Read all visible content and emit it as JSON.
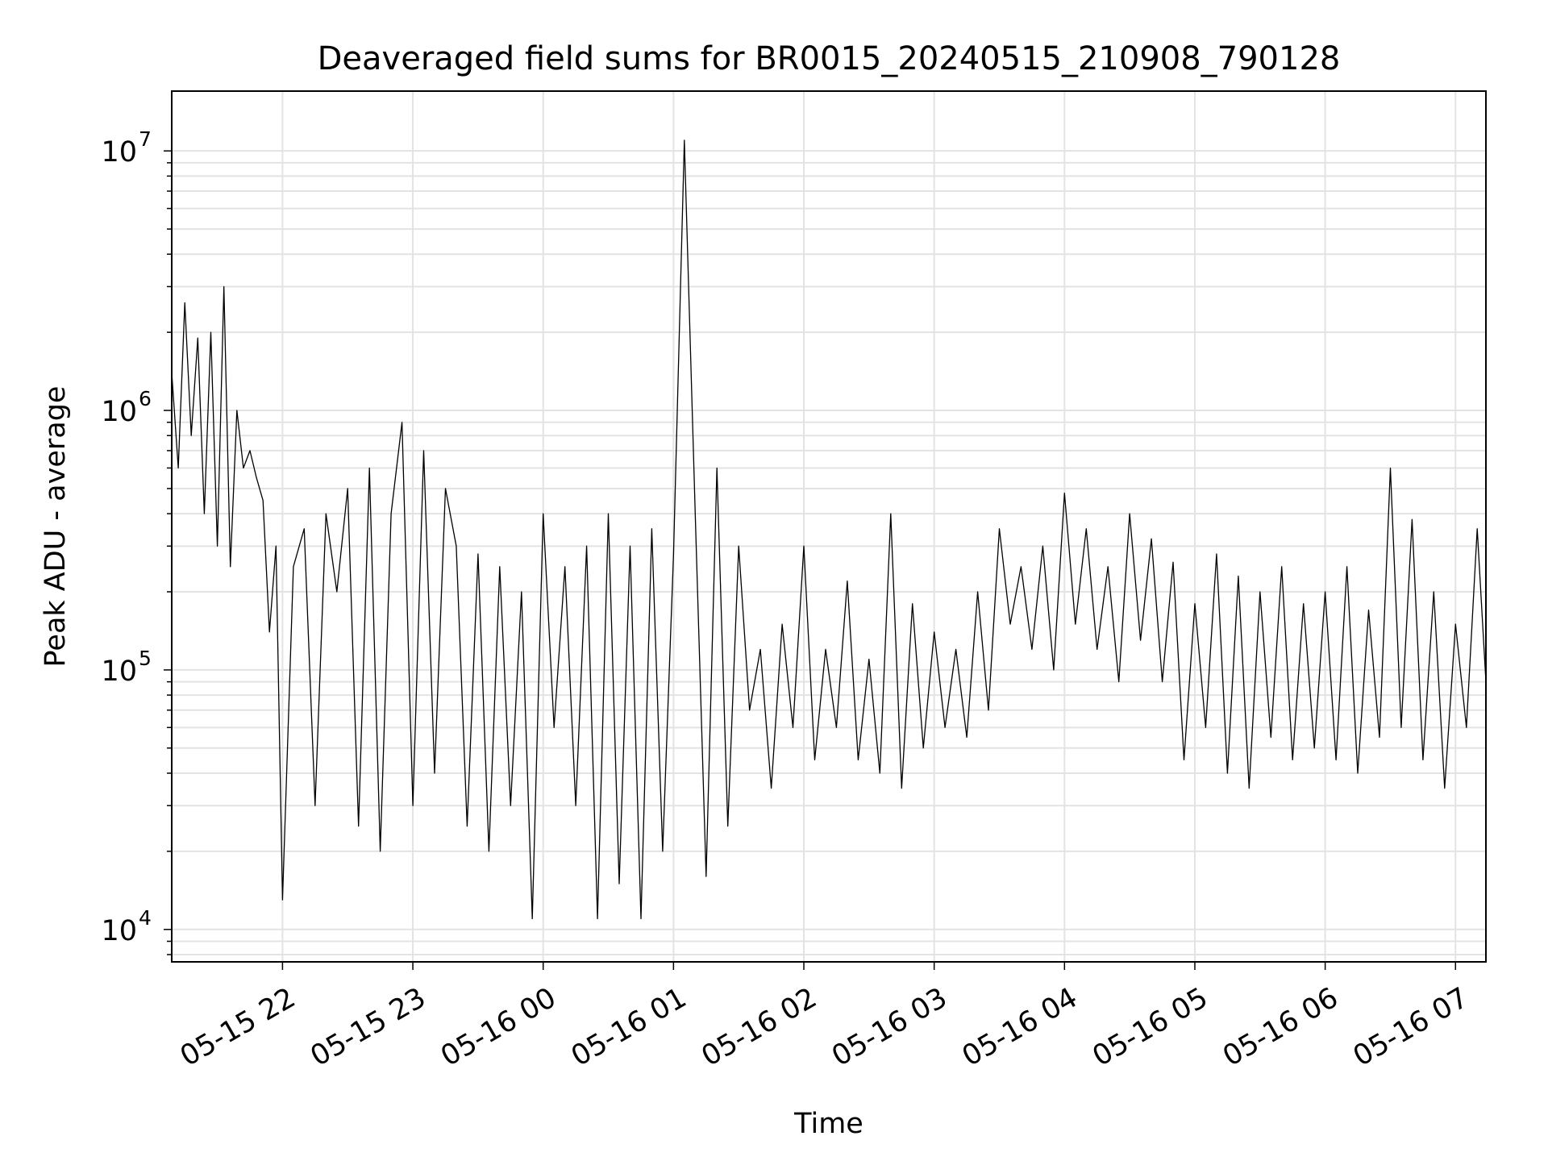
{
  "chart_data": {
    "type": "line",
    "title": "Deaveraged field sums for BR0015_20240515_210908_790128",
    "xlabel": "Time",
    "ylabel": "Peak ADU - average",
    "y_scale": "log",
    "ylim": [
      7500,
      17000000
    ],
    "xlim": [
      "2024-05-15 21:09",
      "2024-05-16 07:14"
    ],
    "grid": true,
    "line_color": "#000000",
    "x_ticks": [
      {
        "value": "2024-05-15 22:00",
        "label": "05-15 22"
      },
      {
        "value": "2024-05-15 23:00",
        "label": "05-15 23"
      },
      {
        "value": "2024-05-16 00:00",
        "label": "05-16 00"
      },
      {
        "value": "2024-05-16 01:00",
        "label": "05-16 01"
      },
      {
        "value": "2024-05-16 02:00",
        "label": "05-16 02"
      },
      {
        "value": "2024-05-16 03:00",
        "label": "05-16 03"
      },
      {
        "value": "2024-05-16 04:00",
        "label": "05-16 04"
      },
      {
        "value": "2024-05-16 05:00",
        "label": "05-16 05"
      },
      {
        "value": "2024-05-16 06:00",
        "label": "05-16 06"
      },
      {
        "value": "2024-05-16 07:00",
        "label": "05-16 07"
      }
    ],
    "y_ticks": [
      {
        "value": 10000,
        "base": "10",
        "exp": "4"
      },
      {
        "value": 100000,
        "base": "10",
        "exp": "5"
      },
      {
        "value": 1000000,
        "base": "10",
        "exp": "6"
      },
      {
        "value": 10000000,
        "base": "10",
        "exp": "7"
      }
    ],
    "x": [
      "2024-05-15 21:09",
      "2024-05-15 21:12",
      "2024-05-15 21:15",
      "2024-05-15 21:18",
      "2024-05-15 21:21",
      "2024-05-15 21:24",
      "2024-05-15 21:27",
      "2024-05-15 21:30",
      "2024-05-15 21:33",
      "2024-05-15 21:36",
      "2024-05-15 21:39",
      "2024-05-15 21:42",
      "2024-05-15 21:45",
      "2024-05-15 21:48",
      "2024-05-15 21:51",
      "2024-05-15 21:54",
      "2024-05-15 21:57",
      "2024-05-15 22:00",
      "2024-05-15 22:05",
      "2024-05-15 22:10",
      "2024-05-15 22:15",
      "2024-05-15 22:20",
      "2024-05-15 22:25",
      "2024-05-15 22:30",
      "2024-05-15 22:35",
      "2024-05-15 22:40",
      "2024-05-15 22:45",
      "2024-05-15 22:50",
      "2024-05-15 22:55",
      "2024-05-15 23:00",
      "2024-05-15 23:05",
      "2024-05-15 23:10",
      "2024-05-15 23:15",
      "2024-05-15 23:20",
      "2024-05-15 23:25",
      "2024-05-15 23:30",
      "2024-05-15 23:35",
      "2024-05-15 23:40",
      "2024-05-15 23:45",
      "2024-05-15 23:50",
      "2024-05-15 23:55",
      "2024-05-16 00:00",
      "2024-05-16 00:05",
      "2024-05-16 00:10",
      "2024-05-16 00:15",
      "2024-05-16 00:20",
      "2024-05-16 00:25",
      "2024-05-16 00:30",
      "2024-05-16 00:35",
      "2024-05-16 00:40",
      "2024-05-16 00:45",
      "2024-05-16 00:50",
      "2024-05-16 00:55",
      "2024-05-16 01:00",
      "2024-05-16 01:05",
      "2024-05-16 01:10",
      "2024-05-16 01:15",
      "2024-05-16 01:20",
      "2024-05-16 01:25",
      "2024-05-16 01:30",
      "2024-05-16 01:35",
      "2024-05-16 01:40",
      "2024-05-16 01:45",
      "2024-05-16 01:50",
      "2024-05-16 01:55",
      "2024-05-16 02:00",
      "2024-05-16 02:05",
      "2024-05-16 02:10",
      "2024-05-16 02:15",
      "2024-05-16 02:20",
      "2024-05-16 02:25",
      "2024-05-16 02:30",
      "2024-05-16 02:35",
      "2024-05-16 02:40",
      "2024-05-16 02:45",
      "2024-05-16 02:50",
      "2024-05-16 02:55",
      "2024-05-16 03:00",
      "2024-05-16 03:05",
      "2024-05-16 03:10",
      "2024-05-16 03:15",
      "2024-05-16 03:20",
      "2024-05-16 03:25",
      "2024-05-16 03:30",
      "2024-05-16 03:35",
      "2024-05-16 03:40",
      "2024-05-16 03:45",
      "2024-05-16 03:50",
      "2024-05-16 03:55",
      "2024-05-16 04:00",
      "2024-05-16 04:05",
      "2024-05-16 04:10",
      "2024-05-16 04:15",
      "2024-05-16 04:20",
      "2024-05-16 04:25",
      "2024-05-16 04:30",
      "2024-05-16 04:35",
      "2024-05-16 04:40",
      "2024-05-16 04:45",
      "2024-05-16 04:50",
      "2024-05-16 04:55",
      "2024-05-16 05:00",
      "2024-05-16 05:05",
      "2024-05-16 05:10",
      "2024-05-16 05:15",
      "2024-05-16 05:20",
      "2024-05-16 05:25",
      "2024-05-16 05:30",
      "2024-05-16 05:35",
      "2024-05-16 05:40",
      "2024-05-16 05:45",
      "2024-05-16 05:50",
      "2024-05-16 05:55",
      "2024-05-16 06:00",
      "2024-05-16 06:05",
      "2024-05-16 06:10",
      "2024-05-16 06:15",
      "2024-05-16 06:20",
      "2024-05-16 06:25",
      "2024-05-16 06:30",
      "2024-05-16 06:35",
      "2024-05-16 06:40",
      "2024-05-16 06:45",
      "2024-05-16 06:50",
      "2024-05-16 06:55",
      "2024-05-16 07:00",
      "2024-05-16 07:05",
      "2024-05-16 07:10",
      "2024-05-16 07:14"
    ],
    "series": [
      {
        "name": "",
        "values": [
          1400000,
          600000,
          2600000,
          800000,
          1900000,
          400000,
          2000000,
          300000,
          3000000,
          250000,
          1000000,
          600000,
          700000,
          550000,
          450000,
          140000,
          300000,
          13000,
          250000,
          350000,
          30000,
          400000,
          200000,
          500000,
          25000,
          600000,
          20000,
          400000,
          900000,
          30000,
          700000,
          40000,
          500000,
          300000,
          25000,
          280000,
          20000,
          250000,
          30000,
          200000,
          11000,
          400000,
          60000,
          250000,
          30000,
          300000,
          11000,
          400000,
          15000,
          300000,
          11000,
          350000,
          20000,
          280000,
          11000000,
          400000,
          16000,
          600000,
          25000,
          300000,
          70000,
          120000,
          35000,
          150000,
          60000,
          300000,
          45000,
          120000,
          60000,
          220000,
          45000,
          110000,
          40000,
          400000,
          35000,
          180000,
          50000,
          140000,
          60000,
          120000,
          55000,
          200000,
          70000,
          350000,
          150000,
          250000,
          120000,
          300000,
          100000,
          480000,
          150000,
          350000,
          120000,
          250000,
          90000,
          400000,
          130000,
          320000,
          90000,
          260000,
          45000,
          180000,
          60000,
          280000,
          40000,
          230000,
          35000,
          200000,
          55000,
          250000,
          45000,
          180000,
          50000,
          200000,
          45000,
          250000,
          40000,
          170000,
          55000,
          600000,
          60000,
          380000,
          45000,
          200000,
          35000,
          150000,
          60000,
          350000,
          90000
        ]
      }
    ]
  }
}
